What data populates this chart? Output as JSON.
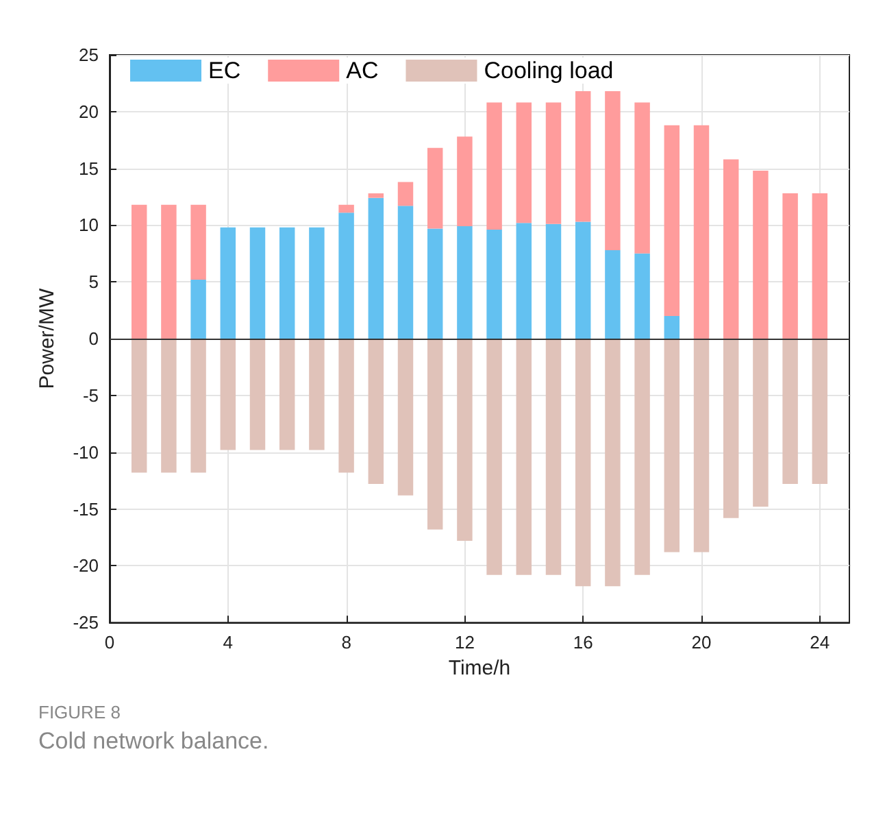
{
  "chart_data": {
    "type": "bar",
    "stacked": true,
    "x": [
      1,
      2,
      3,
      4,
      5,
      6,
      7,
      8,
      9,
      10,
      11,
      12,
      13,
      14,
      15,
      16,
      17,
      18,
      19,
      20,
      21,
      22,
      23,
      24
    ],
    "series": [
      {
        "name": "EC",
        "color": "#63c1f1",
        "values": [
          0,
          0,
          5.2,
          9.8,
          9.8,
          9.8,
          9.8,
          11.1,
          12.4,
          11.7,
          9.7,
          9.9,
          9.6,
          10.2,
          10.1,
          10.3,
          7.8,
          7.5,
          2.0,
          0,
          0,
          0,
          0,
          0
        ]
      },
      {
        "name": "AC",
        "color": "#ff9c9c",
        "values": [
          11.8,
          11.8,
          6.6,
          0,
          0,
          0,
          0,
          0.7,
          0.4,
          2.1,
          7.1,
          7.9,
          11.2,
          10.6,
          10.7,
          11.5,
          14.0,
          13.3,
          16.8,
          18.8,
          15.8,
          14.8,
          12.8,
          12.8
        ]
      },
      {
        "name": "Cooling load",
        "color": "#e0c2b9",
        "values": [
          -11.8,
          -11.8,
          -11.8,
          -9.8,
          -9.8,
          -9.8,
          -9.8,
          -11.8,
          -12.8,
          -13.8,
          -16.8,
          -17.8,
          -20.8,
          -20.8,
          -20.8,
          -21.8,
          -21.8,
          -20.8,
          -18.8,
          -18.8,
          -15.8,
          -14.8,
          -12.8,
          -12.8
        ]
      }
    ],
    "xlabel": "Time/h",
    "ylabel": "Power/MW",
    "xlim": [
      0,
      25
    ],
    "xticks": [
      0,
      4,
      8,
      12,
      16,
      20,
      24
    ],
    "ylim": [
      -25,
      25
    ],
    "yticks": [
      -25,
      -20,
      -15,
      -10,
      -5,
      0,
      5,
      10,
      15,
      20,
      25
    ],
    "grid": true,
    "legend": "top left",
    "ref_lines": [
      {
        "axis": "y",
        "value": 0,
        "color": "#333333"
      }
    ],
    "annotations": [
      "FIGURE 8",
      "Cold network balance."
    ]
  }
}
